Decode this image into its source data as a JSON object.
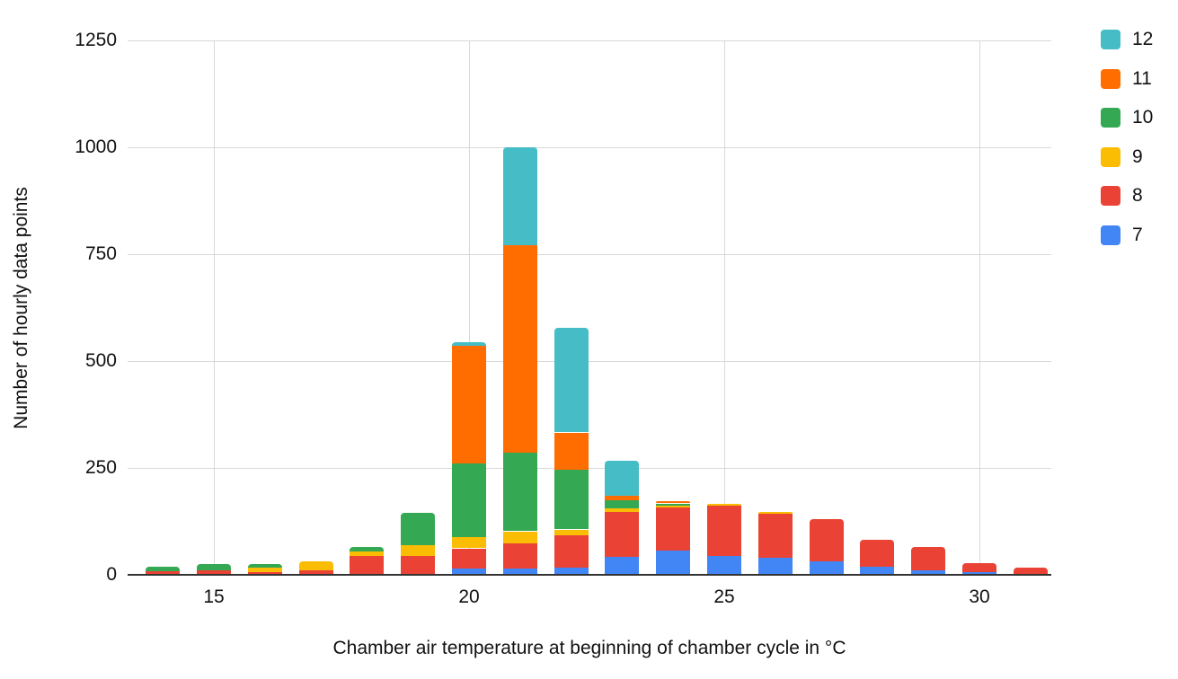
{
  "chart_data": {
    "type": "bar",
    "stacked": true,
    "xlabel": "Chamber air temperature at beginning of chamber cycle in °C",
    "ylabel": "Number of hourly data points",
    "categories": [
      14,
      15,
      16,
      17,
      18,
      19,
      20,
      21,
      22,
      23,
      24,
      25,
      26,
      27,
      28,
      29,
      30,
      31
    ],
    "series": [
      {
        "name": "7",
        "color": "#4285F4",
        "values": [
          0,
          0,
          0,
          0,
          0,
          0,
          14,
          14,
          16,
          42,
          56,
          45,
          40,
          32,
          20,
          10,
          6,
          0
        ]
      },
      {
        "name": "8",
        "color": "#EA4335",
        "values": [
          8,
          10,
          7,
          10,
          45,
          45,
          48,
          60,
          77,
          105,
          101,
          117,
          102,
          98,
          62,
          56,
          22,
          17
        ]
      },
      {
        "name": "9",
        "color": "#FBBC04",
        "values": [
          0,
          0,
          10,
          22,
          10,
          25,
          27,
          28,
          13,
          8,
          4,
          5,
          6,
          0,
          0,
          0,
          0,
          0
        ]
      },
      {
        "name": "10",
        "color": "#34A853",
        "values": [
          12,
          15,
          9,
          0,
          10,
          75,
          171,
          183,
          139,
          20,
          6,
          0,
          0,
          0,
          0,
          0,
          0,
          0
        ]
      },
      {
        "name": "11",
        "color": "#FF6D01",
        "values": [
          0,
          0,
          0,
          0,
          0,
          0,
          275,
          487,
          88,
          10,
          6,
          0,
          0,
          0,
          0,
          0,
          0,
          0
        ]
      },
      {
        "name": "12",
        "color": "#46BDC6",
        "values": [
          0,
          0,
          0,
          0,
          0,
          0,
          10,
          228,
          245,
          82,
          0,
          0,
          0,
          0,
          0,
          0,
          0,
          0
        ]
      }
    ],
    "legend": {
      "position": "right",
      "order_top_to_bottom": [
        "12",
        "11",
        "10",
        "9",
        "8",
        "7"
      ]
    },
    "yticks": [
      0,
      250,
      500,
      750,
      1000,
      1250
    ],
    "xticks": [
      15,
      20,
      25,
      30
    ],
    "ylim": [
      0,
      1250
    ],
    "grid": true,
    "colors": {
      "gridline": "#d9d9d9",
      "axis_line": "#333333",
      "text": "#111111",
      "background": "#ffffff"
    }
  }
}
